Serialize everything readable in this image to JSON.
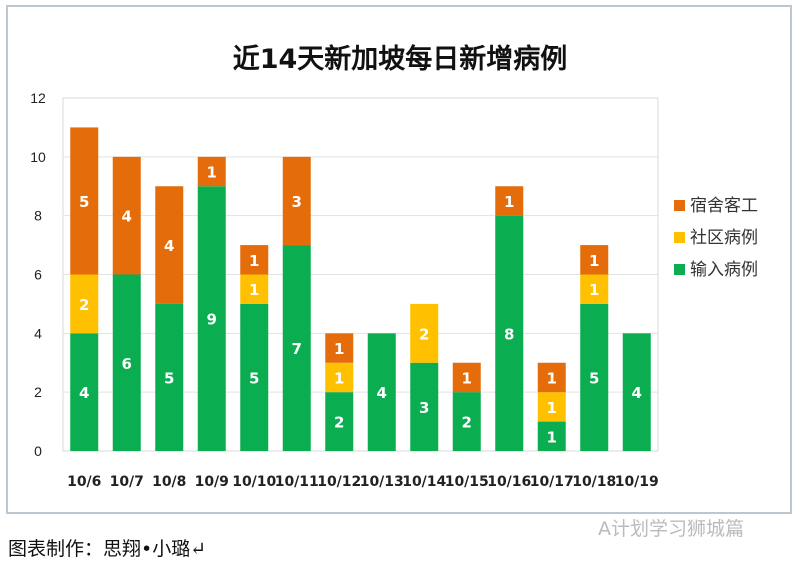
{
  "chart_data": {
    "type": "bar",
    "stacked": true,
    "title": "近14天新加坡每日新增病例",
    "categories": [
      "10/6",
      "10/7",
      "10/8",
      "10/9",
      "10/10",
      "10/11",
      "10/12",
      "10/13",
      "10/14",
      "10/15",
      "10/16",
      "10/17",
      "10/18",
      "10/19"
    ],
    "series": [
      {
        "name": "输入病例",
        "color": "#0aad4f",
        "values": [
          4,
          6,
          5,
          9,
          5,
          7,
          2,
          4,
          3,
          2,
          8,
          1,
          5,
          4
        ]
      },
      {
        "name": "社区病例",
        "color": "#ffc000",
        "values": [
          2,
          0,
          0,
          0,
          1,
          0,
          1,
          0,
          2,
          0,
          0,
          1,
          1,
          0
        ]
      },
      {
        "name": "宿舍客工",
        "color": "#e46c0a",
        "values": [
          5,
          4,
          4,
          1,
          1,
          3,
          1,
          0,
          0,
          1,
          1,
          1,
          1,
          0
        ]
      }
    ],
    "legend_order": [
      "宿舍客工",
      "社区病例",
      "输入病例"
    ],
    "ylim": [
      0,
      12
    ],
    "yticks": [
      0,
      2,
      4,
      6,
      8,
      10,
      12
    ],
    "grid": true,
    "legend": "right"
  },
  "footer": {
    "credit": "图表制作：思翔•小璐↵",
    "watermark": "A计划学习狮城篇"
  }
}
